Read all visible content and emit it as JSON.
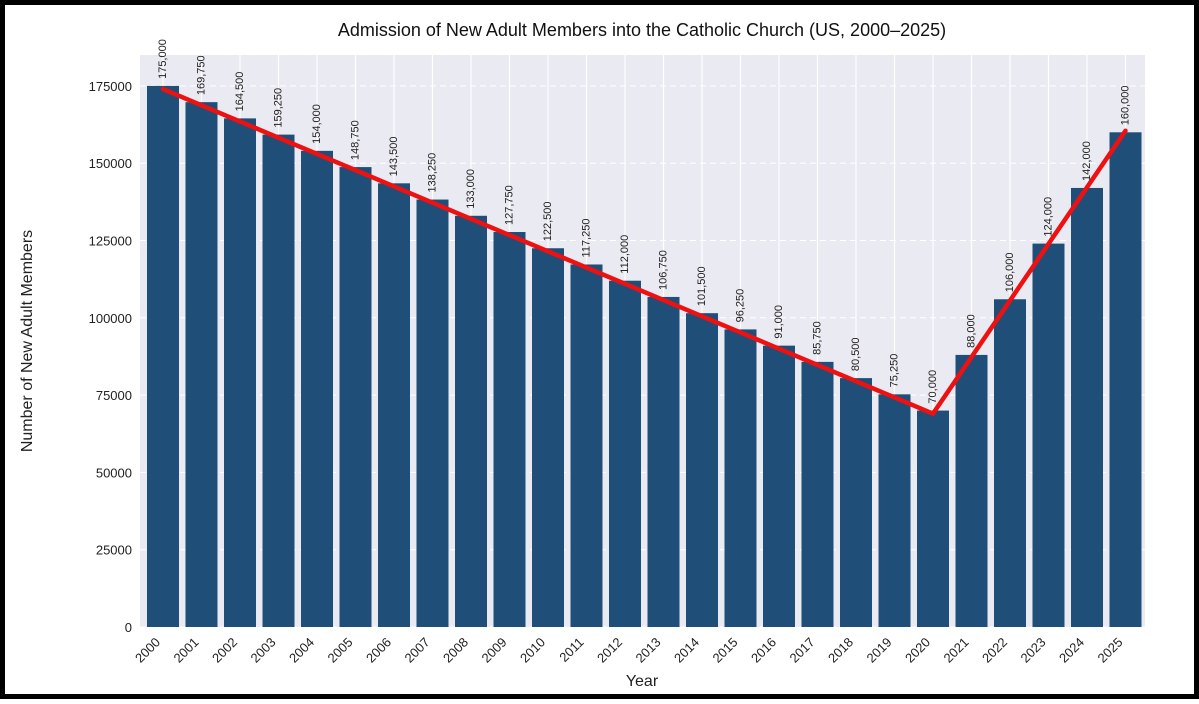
{
  "chart_data": {
    "type": "bar",
    "title": "Admission of New Adult Members into the Catholic Church (US, 2000–2025)",
    "xlabel": "Year",
    "ylabel": "Number of New Adult Members",
    "ylim": [
      0,
      185000
    ],
    "yticks": [
      0,
      25000,
      50000,
      75000,
      100000,
      125000,
      150000,
      175000
    ],
    "grid": true,
    "categories": [
      "2000",
      "2001",
      "2002",
      "2003",
      "2004",
      "2005",
      "2006",
      "2007",
      "2008",
      "2009",
      "2010",
      "2011",
      "2012",
      "2013",
      "2014",
      "2015",
      "2016",
      "2017",
      "2018",
      "2019",
      "2020",
      "2021",
      "2022",
      "2023",
      "2024",
      "2025"
    ],
    "values": [
      175000,
      169750,
      164500,
      159250,
      154000,
      148750,
      143500,
      138250,
      133000,
      127750,
      122500,
      117250,
      112000,
      106750,
      101500,
      96250,
      91000,
      85750,
      80500,
      75250,
      70000,
      88000,
      106000,
      124000,
      142000,
      160000
    ],
    "value_labels": [
      "175,000",
      "169,750",
      "164,500",
      "159,250",
      "154,000",
      "148,750",
      "143,500",
      "138,250",
      "133,000",
      "127,750",
      "122,500",
      "117,250",
      "112,000",
      "106,750",
      "101,500",
      "96,250",
      "91,000",
      "85,750",
      "80,500",
      "75,250",
      "70,000",
      "88,000",
      "106,000",
      "124,000",
      "142,000",
      "160,000"
    ],
    "trend_line": {
      "color": "#ee1111",
      "points": [
        {
          "x": "2000",
          "y": 174000
        },
        {
          "x": "2020",
          "y": 69000
        },
        {
          "x": "2025",
          "y": 160500
        }
      ]
    },
    "bar_color": "#1f4e79",
    "background_color": "#eaeaf2"
  }
}
